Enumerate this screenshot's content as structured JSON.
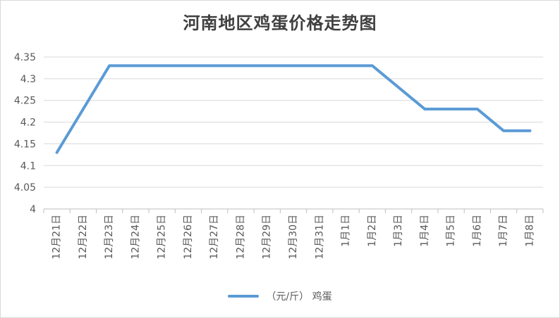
{
  "colors": {
    "series": "#5b9bd5",
    "grid": "#d9d9d9",
    "axis": "#bfbfbf"
  },
  "chart_data": {
    "type": "line",
    "title": "河南地区鸡蛋价格走势图",
    "categories": [
      "12月21日",
      "12月22日",
      "12月23日",
      "12月24日",
      "12月25日",
      "12月26日",
      "12月27日",
      "12月28日",
      "12月29日",
      "12月30日",
      "12月31日",
      "1月1日",
      "1月2日",
      "1月3日",
      "1月4日",
      "1月5日",
      "1月6日",
      "1月7日",
      "1月8日"
    ],
    "series": [
      {
        "name": "（元/斤） 鸡蛋",
        "points": [
          {
            "x": "12月21日",
            "y": 4.13
          },
          {
            "x": "12月23日",
            "y": 4.33
          },
          {
            "x": "1月2日",
            "y": 4.33
          },
          {
            "x": "1月4日",
            "y": 4.23
          },
          {
            "x": "1月6日",
            "y": 4.23
          },
          {
            "x": "1月7日",
            "y": 4.18
          },
          {
            "x": "1月8日",
            "y": 4.18
          }
        ]
      }
    ],
    "ylim": [
      4,
      4.35
    ],
    "yticks": [
      "4",
      "4.05",
      "4.1",
      "4.15",
      "4.2",
      "4.25",
      "4.3",
      "4.35"
    ],
    "grid": true,
    "legend": "bottom"
  }
}
